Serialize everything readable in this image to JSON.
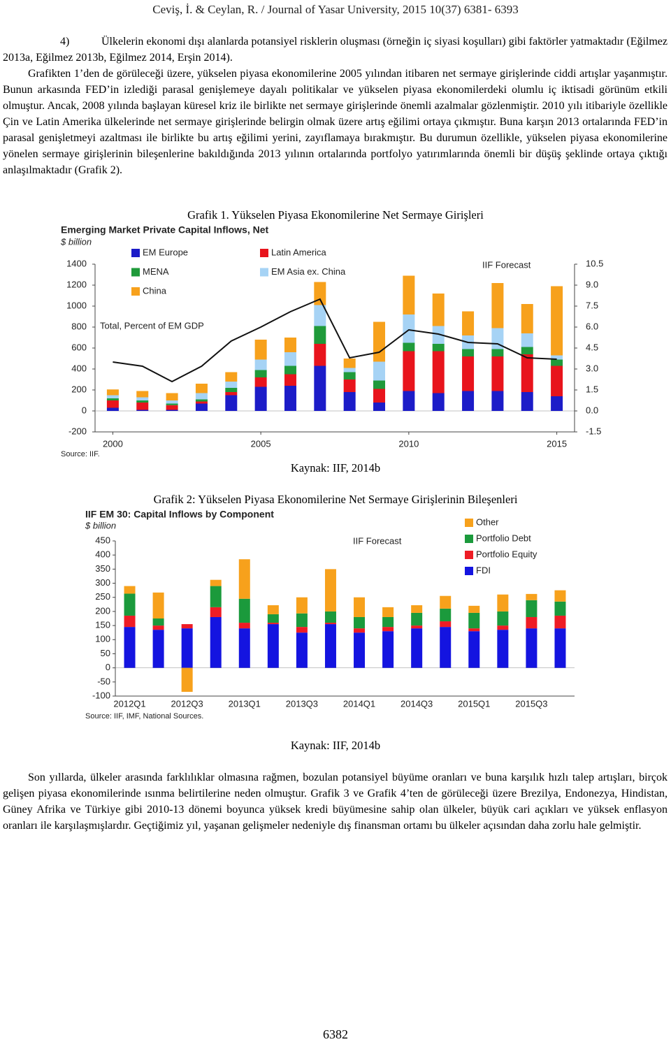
{
  "header": {
    "running_title": "Ceviş, İ. & Ceylan, R. / Journal of Yasar University, 2015 10(37) 6381- 6393"
  },
  "list_item": {
    "marker": "4)",
    "text": "Ülkelerin ekonomi dışı alanlarda potansiyel risklerin oluşması (örneğin iç siyasi koşulları) gibi faktörler yatmaktadır (Eğilmez 2013a, Eğilmez 2013b, Eğilmez 2014, Erşin 2014)."
  },
  "paragraphs": [
    "Grafikten 1’den de görüleceği üzere, yükselen piyasa ekonomilerine 2005 yılından itibaren net sermaye girişlerinde ciddi artışlar yaşanmıştır. Bunun arkasında FED’in izlediği parasal genişlemeye dayalı politikalar ve yükselen piyasa ekonomilerdeki olumlu iç iktisadi görünüm etkili olmuştur. Ancak, 2008 yılında başlayan küresel kriz ile birlikte net sermaye girişlerinde önemli azalmalar gözlenmiştir. 2010 yılı itibariyle özellikle Çin ve Latin Amerika ülkelerinde net sermaye girişlerinde belirgin olmak üzere artış eğilimi ortaya çıkmıştır. Buna karşın 2013 ortalarında FED’in parasal genişletmeyi azaltması ile birlikte bu artış eğilimi yerini, zayıflamaya bırakmıştır. Bu durumun özellikle, yükselen piyasa ekonomilerine yönelen sermaye girişlerinin bileşenlerine bakıldığında 2013 yılının ortalarında portfolyo yatırımlarında önemli bir düşüş şeklinde ortaya çıktığı anlaşılmaktadır (Grafik 2).",
    "Son yıllarda, ülkeler arasında farklılıklar olmasına rağmen, bozulan potansiyel büyüme oranları ve buna karşılık hızlı talep artışları, birçok gelişen piyasa ekonomilerinde ısınma belirtilerine neden olmuştur. Grafik 3 ve Grafik 4’ten de görüleceği üzere Brezilya, Endonezya, Hindistan, Güney Afrika ve Türkiye gibi 2010-13 dönemi boyunca yüksek kredi büyümesine sahip olan ülkeler, büyük cari açıkları ve yüksek enflasyon oranları ile karşılaşmışlardır.  Geçtiğimiz yıl, yaşanan gelişmeler nedeniyle dış finansman ortamı bu ülkeler açısından daha zorlu hale gelmiştir."
  ],
  "figures": [
    {
      "caption": "Grafik 1.  Yükselen Piyasa Ekonomilerine Net Sermaye Girişleri",
      "source": "Kaynak: IIF, 2014b"
    },
    {
      "caption": "Grafik 2:  Yükselen Piyasa Ekonomilerine Net Sermaye Girişlerinin Bileşenleri",
      "source": "Kaynak: IIF, 2014b"
    }
  ],
  "page_number": "6382",
  "chart_data": [
    {
      "type": "bar",
      "stacked": true,
      "title": "Emerging Market Private Capital Inflows, Net",
      "subtitle": "$ billion",
      "annotation": "IIF Forecast",
      "source": "Source: IIF.",
      "x": [
        2000,
        2001,
        2002,
        2003,
        2004,
        2005,
        2006,
        2007,
        2008,
        2009,
        2010,
        2011,
        2012,
        2013,
        2014,
        2015
      ],
      "xlim": [
        1999.4,
        2015.6
      ],
      "xticks": [
        2000,
        2005,
        2010,
        2015
      ],
      "ylim": [
        -200,
        1400
      ],
      "yticks": [
        -200,
        0,
        200,
        400,
        600,
        800,
        1000,
        1200,
        1400
      ],
      "y2lim": [
        -1.5,
        10.5
      ],
      "y2ticks": [
        -1.5,
        {
          "value": 0,
          "label": "0.0"
        },
        1.5,
        {
          "value": 3,
          "label": "3.0"
        },
        4.5,
        {
          "value": 6,
          "label": "6.0"
        },
        7.5,
        {
          "value": 9,
          "label": "9.0"
        },
        10.5
      ],
      "series": [
        {
          "name": "EM Europe",
          "color": "#1c1cc8",
          "values": [
            30,
            10,
            10,
            70,
            150,
            230,
            240,
            430,
            180,
            80,
            190,
            170,
            190,
            190,
            180,
            140
          ]
        },
        {
          "name": "Latin America",
          "color": "#e8141c",
          "values": [
            70,
            70,
            45,
            20,
            30,
            90,
            110,
            210,
            120,
            130,
            380,
            400,
            330,
            330,
            360,
            290
          ]
        },
        {
          "name": "MENA",
          "color": "#1f9a3a",
          "values": [
            20,
            20,
            15,
            20,
            40,
            70,
            80,
            170,
            70,
            80,
            80,
            70,
            70,
            70,
            70,
            60
          ]
        },
        {
          "name": "EM Asia ex. China",
          "color": "#a6d3f5",
          "values": [
            30,
            30,
            30,
            60,
            60,
            100,
            130,
            200,
            40,
            180,
            270,
            170,
            130,
            200,
            130,
            40
          ]
        },
        {
          "name": "China",
          "color": "#f7a11c",
          "values": [
            55,
            60,
            70,
            90,
            90,
            190,
            140,
            220,
            90,
            380,
            370,
            310,
            230,
            430,
            280,
            660
          ]
        },
        {
          "name": "Total, Percent of EM GDP",
          "type": "line",
          "axis": "y2",
          "color": "#111111",
          "values": [
            3.5,
            3.2,
            2.1,
            3.2,
            5.0,
            6.0,
            7.1,
            8.0,
            3.8,
            4.2,
            5.8,
            5.5,
            4.9,
            4.8,
            3.8,
            3.7
          ]
        }
      ]
    },
    {
      "type": "bar",
      "stacked": true,
      "title": "IIF EM 30: Capital Inflows by Component",
      "subtitle": "$ billion",
      "annotation": "IIF Forecast",
      "source": "Source: IIF, IMF, National Sources.",
      "categories": [
        "2012Q1",
        null,
        "2012Q3",
        null,
        "2013Q1",
        null,
        "2013Q3",
        null,
        "2014Q1",
        null,
        "2014Q3",
        null,
        "2015Q1",
        null,
        "2015Q3",
        null
      ],
      "ylim": [
        -100,
        450
      ],
      "yticks": [
        -100,
        -50,
        0,
        50,
        100,
        150,
        200,
        250,
        300,
        350,
        400,
        450
      ],
      "series": [
        {
          "name": "FDI",
          "color": "#1414e0",
          "values": [
            145,
            135,
            140,
            180,
            140,
            155,
            125,
            155,
            125,
            130,
            140,
            145,
            130,
            135,
            140,
            140
          ]
        },
        {
          "name": "Portfolio Equity",
          "color": "#ee1c25",
          "values": [
            40,
            15,
            15,
            35,
            20,
            5,
            20,
            5,
            15,
            15,
            10,
            20,
            10,
            15,
            40,
            45
          ]
        },
        {
          "name": "Portfolio Debt",
          "color": "#1b9a3c",
          "values": [
            78,
            25,
            0,
            75,
            85,
            30,
            48,
            40,
            40,
            35,
            45,
            45,
            55,
            50,
            60,
            50
          ]
        },
        {
          "name": "Other",
          "color": "#f7a11c",
          "values": [
            27,
            92,
            -85,
            22,
            140,
            32,
            57,
            150,
            70,
            35,
            27,
            45,
            25,
            60,
            22,
            40
          ]
        }
      ]
    }
  ]
}
